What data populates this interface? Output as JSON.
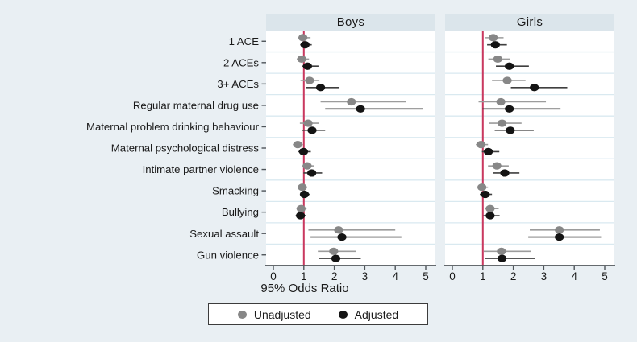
{
  "colors": {
    "background": "#e9eff3",
    "panel_header": "#dbe5eb",
    "plot_bg": "#ffffff",
    "gridline": "#d9e9f0",
    "axis": "#4f555a",
    "tick_label": "#1a1a1a",
    "reference_line": "#c9385f",
    "unadjusted_marker": "#878787",
    "unadjusted_ci": "#9c9c9c",
    "adjusted_marker": "#141414",
    "adjusted_ci": "#3f3f3f"
  },
  "legend": {
    "unadjusted_label": "Unadjusted",
    "adjusted_label": "Adjusted"
  },
  "chart_data": {
    "type": "forest",
    "xlabel": "95% Odds Ratio",
    "x_ticks": [
      0,
      1,
      2,
      3,
      4,
      5
    ],
    "xlim": [
      -0.25,
      5.3
    ],
    "reference_line": 1,
    "grid": true,
    "legend_position": "bottom",
    "categories": [
      "1 ACE",
      "2 ACEs",
      "3+ ACEs",
      "Regular maternal drug use",
      "Maternal problem drinking behaviour",
      "Maternal psychological distress",
      "Intimate partner violence",
      "Smacking",
      "Bullying",
      "Sexual assault",
      "Gun violence"
    ],
    "panels": [
      {
        "title": "Boys",
        "series": [
          {
            "name": "Unadjusted",
            "values": [
              0.97,
              0.93,
              1.19,
              2.56,
              1.14,
              0.8,
              1.11,
              0.95,
              0.91,
              2.14,
              1.98
            ],
            "ci_low": [
              0.82,
              0.77,
              0.89,
              1.55,
              0.87,
              0.64,
              0.93,
              0.8,
              0.76,
              1.15,
              1.46
            ],
            "ci_high": [
              1.22,
              1.17,
              1.51,
              4.35,
              1.5,
              0.97,
              1.33,
              1.11,
              1.09,
              4.0,
              2.72
            ]
          },
          {
            "name": "Adjusted",
            "values": [
              1.04,
              1.12,
              1.55,
              2.86,
              1.27,
              0.99,
              1.26,
              1.02,
              0.89,
              2.25,
              2.05
            ],
            "ci_low": [
              0.88,
              0.93,
              1.08,
              1.7,
              0.95,
              0.8,
              0.99,
              0.87,
              0.73,
              1.22,
              1.49
            ],
            "ci_high": [
              1.26,
              1.48,
              2.17,
              4.92,
              1.7,
              1.23,
              1.6,
              1.19,
              1.06,
              4.2,
              2.87
            ]
          }
        ]
      },
      {
        "title": "Girls",
        "series": [
          {
            "name": "Unadjusted",
            "values": [
              1.34,
              1.49,
              1.8,
              1.59,
              1.63,
              0.94,
              1.46,
              0.97,
              1.24,
              3.51,
              1.61
            ],
            "ci_low": [
              1.08,
              1.18,
              1.3,
              0.86,
              1.21,
              0.77,
              1.17,
              0.81,
              1.06,
              2.54,
              1.03
            ],
            "ci_high": [
              1.68,
              1.89,
              2.4,
              3.07,
              2.27,
              1.17,
              1.85,
              1.17,
              1.52,
              4.84,
              2.58
            ]
          },
          {
            "name": "Adjusted",
            "values": [
              1.41,
              1.87,
              2.69,
              1.87,
              1.9,
              1.18,
              1.72,
              1.08,
              1.24,
              3.51,
              1.63
            ],
            "ci_low": [
              1.14,
              1.43,
              1.92,
              0.99,
              1.39,
              0.97,
              1.34,
              0.9,
              1.02,
              2.49,
              1.08
            ],
            "ci_high": [
              1.79,
              2.51,
              3.77,
              3.55,
              2.67,
              1.54,
              2.2,
              1.3,
              1.55,
              4.88,
              2.71
            ]
          }
        ]
      }
    ]
  }
}
